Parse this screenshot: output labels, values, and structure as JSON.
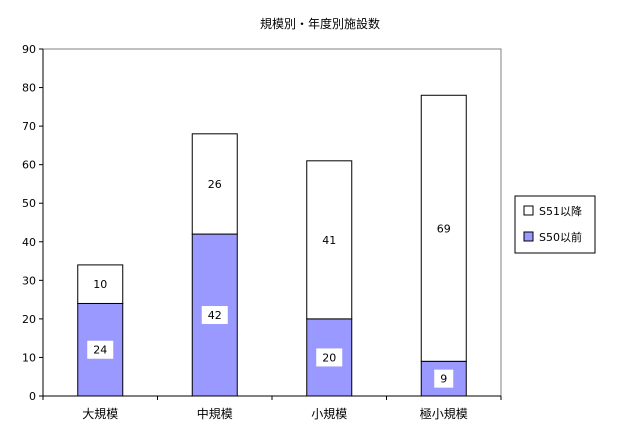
{
  "chart_data": {
    "type": "bar",
    "stacked": true,
    "title": "規模別・年度別施設数",
    "categories": [
      "大規模",
      "中規模",
      "小規模",
      "極小規模"
    ],
    "series": [
      {
        "name": "S50以前",
        "values": [
          24,
          42,
          20,
          9
        ],
        "color": "#9999ff"
      },
      {
        "name": "S51以降",
        "values": [
          10,
          26,
          41,
          69
        ],
        "color": "#ffffff"
      }
    ],
    "ylim": [
      0,
      90
    ],
    "yticks": [
      0,
      10,
      20,
      30,
      40,
      50,
      60,
      70,
      80,
      90
    ],
    "grid": false,
    "legend": "right"
  }
}
